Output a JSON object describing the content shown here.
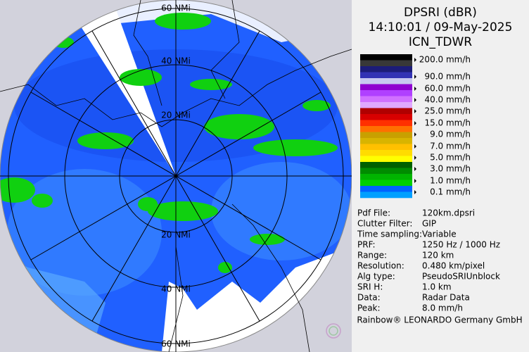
{
  "radar": {
    "range_labels": [
      "60 NMi",
      "40 NMi",
      "20 NMi",
      "20 NMi",
      "40 NMi",
      "60 NMi"
    ]
  },
  "header": {
    "product": "DPSRI (dBR)",
    "time": "14:10:01 / 09-May-2025",
    "site": "ICN_TDWR"
  },
  "legend": {
    "labels": [
      "200.0 mm/h",
      "90.0 mm/h",
      "60.0 mm/h",
      "40.0 mm/h",
      "25.0 mm/h",
      "15.0 mm/h",
      "9.0 mm/h",
      "7.0 mm/h",
      "5.0 mm/h",
      "3.0 mm/h",
      "1.0 mm/h",
      "0.1 mm/h"
    ]
  },
  "info": {
    "rows": [
      [
        "Pdf File:",
        "120km.dpsri"
      ],
      [
        "Clutter Filter:",
        "GIP"
      ],
      [
        "Time sampling:",
        "Variable"
      ],
      [
        "PRF:",
        "1250 Hz / 1000 Hz"
      ],
      [
        "Range:",
        "120 km"
      ],
      [
        "Resolution:",
        "0.480 km/pixel"
      ],
      [
        "Alg type:",
        "PseudoSRIUnblock"
      ],
      [
        "SRI H:",
        "1.0 km"
      ],
      [
        "Data:",
        "Radar Data"
      ],
      [
        "Peak:",
        "8.0 mm/h"
      ]
    ]
  },
  "footer": "Rainbow® LEONARDO Germany GmbH"
}
